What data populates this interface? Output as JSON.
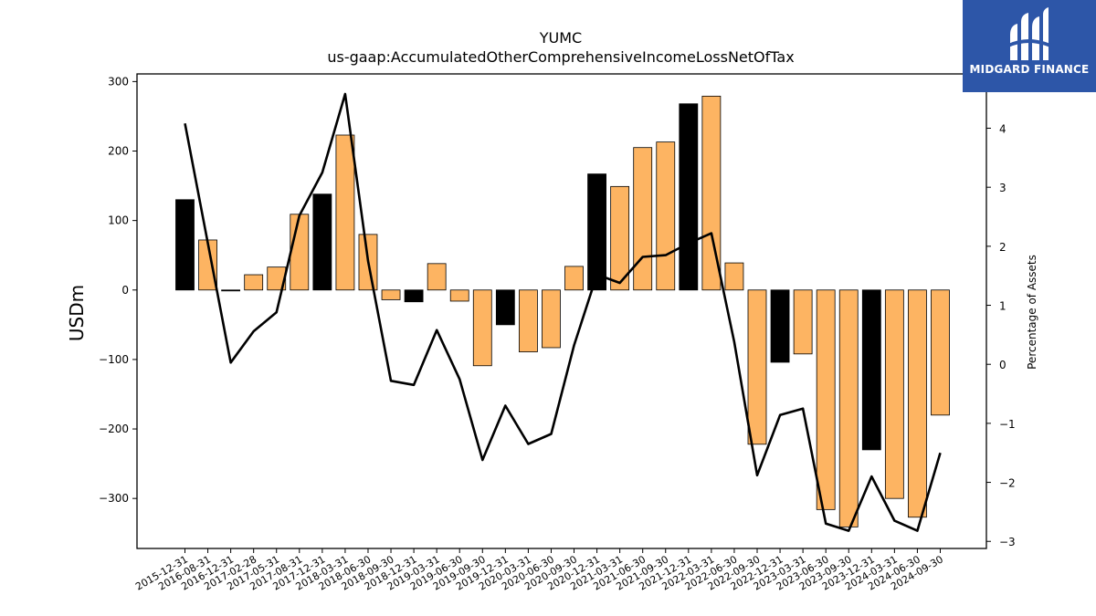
{
  "chart_data": {
    "type": "bar",
    "title": "YUMC",
    "subtitle": "us-gaap:AccumulatedOtherComprehensiveIncomeLossNetOfTax",
    "ylabel": "USDm",
    "y2label": "Percentage of Assets",
    "ylim": [
      -372,
      311
    ],
    "y2lim": [
      -3.12,
      4.92
    ],
    "yticks": [
      300,
      200,
      100,
      0,
      -100,
      -200,
      -300
    ],
    "y2ticks": [
      4,
      3,
      2,
      1,
      0,
      -1,
      -2,
      -3
    ],
    "grid": false,
    "categories": [
      "2015-12-31",
      "2016-08-31",
      "2016-12-31",
      "2017-02-28",
      "2017-05-31",
      "2017-08-31",
      "2017-12-31",
      "2018-03-31",
      "2018-06-30",
      "2018-09-30",
      "2018-12-31",
      "2019-03-31",
      "2019-06-30",
      "2019-09-30",
      "2019-12-31",
      "2020-03-31",
      "2020-06-30",
      "2020-09-30",
      "2020-12-31",
      "2021-03-31",
      "2021-06-30",
      "2021-09-30",
      "2021-12-31",
      "2022-03-31",
      "2022-06-30",
      "2022-09-30",
      "2022-12-31",
      "2023-03-31",
      "2023-06-30",
      "2023-09-30",
      "2023-12-31",
      "2024-03-31",
      "2024-06-30",
      "2024-09-30"
    ],
    "series": [
      {
        "kind": "bar",
        "values": [
          130,
          72,
          -1,
          22,
          33,
          109,
          138,
          223,
          80,
          -14,
          -17,
          38,
          -16,
          -109,
          -50,
          -89,
          -83,
          34,
          167,
          149,
          205,
          213,
          268,
          279,
          39,
          -222,
          -104,
          -92,
          -316,
          -341,
          -230,
          -300,
          -327,
          -180
        ],
        "colors": [
          "#000000",
          "#fdb462",
          "#000000",
          "#fdb462",
          "#fdb462",
          "#fdb462",
          "#000000",
          "#fdb462",
          "#fdb462",
          "#fdb462",
          "#000000",
          "#fdb462",
          "#fdb462",
          "#fdb462",
          "#000000",
          "#fdb462",
          "#fdb462",
          "#fdb462",
          "#000000",
          "#fdb462",
          "#fdb462",
          "#fdb462",
          "#000000",
          "#fdb462",
          "#fdb462",
          "#fdb462",
          "#000000",
          "#fdb462",
          "#fdb462",
          "#fdb462",
          "#000000",
          "#fdb462",
          "#fdb462",
          "#fdb462"
        ]
      },
      {
        "kind": "line",
        "axis": "right",
        "color": "#000000",
        "values": [
          4.08,
          2.05,
          0.03,
          0.56,
          0.88,
          2.52,
          3.25,
          4.58,
          1.75,
          -0.28,
          -0.35,
          0.58,
          -0.25,
          -1.62,
          -0.7,
          -1.35,
          -1.18,
          0.32,
          1.52,
          1.38,
          1.82,
          1.85,
          2.05,
          2.22,
          0.38,
          -1.88,
          -0.86,
          -0.75,
          -2.7,
          -2.82,
          -1.9,
          -2.65,
          -2.82,
          -1.5
        ]
      }
    ],
    "colors": {
      "bar_primary": "#fdb462",
      "bar_alternate": "#000000",
      "line": "#000000"
    }
  },
  "logo": {
    "text": "MIDGARD FINANCE",
    "background": "#2d56a8"
  }
}
